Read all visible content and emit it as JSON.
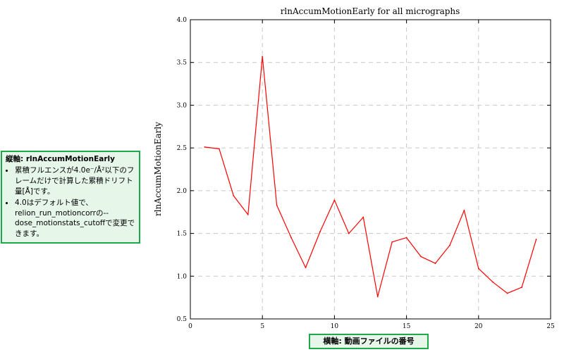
{
  "chart_data": {
    "type": "line",
    "title": "rlnAccumMotionEarly for all micrographs",
    "xlabel": "",
    "ylabel": "rlnAccumMotionEarly",
    "xlim": [
      0,
      25
    ],
    "ylim": [
      0.5,
      4.0
    ],
    "xticks": [
      0,
      5,
      10,
      15,
      20,
      25
    ],
    "yticks": [
      0.5,
      1.0,
      1.5,
      2.0,
      2.5,
      3.0,
      3.5,
      4.0
    ],
    "grid": true,
    "series": [
      {
        "color": "#ff0000",
        "x": [
          1,
          2,
          3,
          4,
          5,
          6,
          7,
          8,
          9,
          10,
          11,
          12,
          13,
          14,
          15,
          16,
          17,
          18,
          19,
          20,
          21,
          22,
          23,
          24
        ],
        "y": [
          2.51,
          2.49,
          1.94,
          1.72,
          3.57,
          1.83,
          1.45,
          1.1,
          1.52,
          1.89,
          1.5,
          1.69,
          0.76,
          1.4,
          1.45,
          1.23,
          1.15,
          1.36,
          1.77,
          1.09,
          0.93,
          0.8,
          0.87,
          1.43
        ]
      }
    ]
  },
  "annotations": {
    "y_axis": {
      "title": "縦軸: rlnAccumMotionEarly",
      "bullets": [
        "累積フルエンスが4.0e⁻/Å²以下のフレームだけで計算した累積ドリフト量[Å]です。",
        "4.0はデフォルト値で、relion_run_motioncorrの--dose_motionstats_cutoffで変更できます。"
      ]
    },
    "x_axis": {
      "label": "横軸: 動画ファイルの番号"
    }
  },
  "colors": {
    "line": "#ff0000",
    "annotation_border": "#1faa4a",
    "annotation_fill": "#e6f6e9",
    "grid": "#c8c8c8"
  }
}
